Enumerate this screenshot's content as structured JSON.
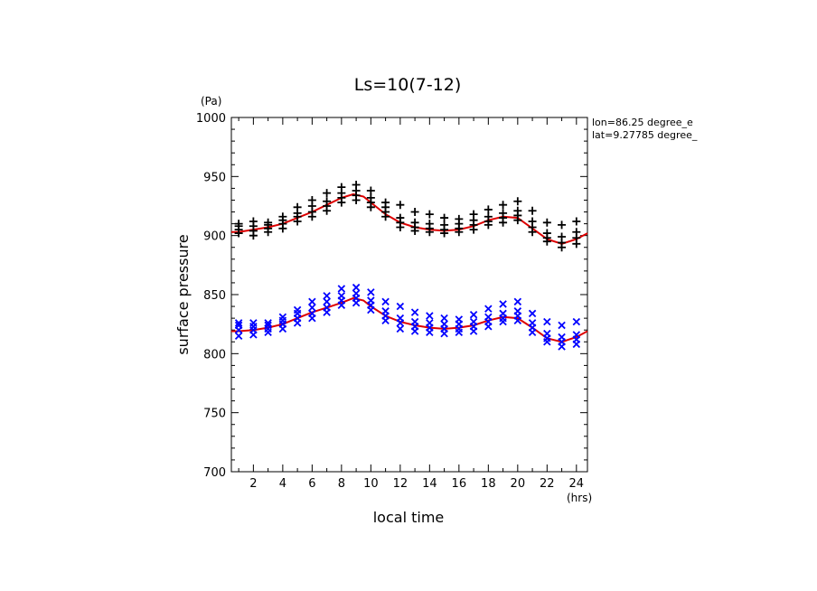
{
  "chart_data": {
    "type": "scatter",
    "title": "Ls=10(7-12)",
    "xlabel": "local time",
    "ylabel": "surface pressure",
    "x_unit": "(hrs)",
    "y_unit": "(Pa)",
    "xlim": [
      0.5,
      24.75
    ],
    "ylim": [
      700,
      1000
    ],
    "xticks": [
      2,
      4,
      6,
      8,
      10,
      12,
      14,
      16,
      18,
      20,
      22,
      24
    ],
    "yticks": [
      700,
      750,
      800,
      850,
      900,
      950,
      1000
    ],
    "grid": false,
    "annotation": [
      "lon=86.25 degree_e",
      "lat=9.27785 degree_"
    ],
    "x": [
      1,
      2,
      3,
      4,
      5,
      6,
      7,
      8,
      9,
      10,
      11,
      12,
      13,
      14,
      15,
      16,
      17,
      18,
      19,
      20,
      21,
      22,
      23,
      24
    ],
    "series": [
      {
        "marker": "+",
        "color": "#000000",
        "values": [
          [
            902,
            905,
            908,
            910
          ],
          [
            900,
            904,
            908,
            912
          ],
          [
            903,
            906,
            909,
            911
          ],
          [
            906,
            910,
            913,
            916
          ],
          [
            912,
            916,
            919,
            924
          ],
          [
            916,
            920,
            925,
            930
          ],
          [
            921,
            925,
            929,
            936
          ],
          [
            928,
            932,
            936,
            941
          ],
          [
            930,
            934,
            938,
            943
          ],
          [
            924,
            928,
            932,
            938
          ],
          [
            916,
            920,
            924,
            928
          ],
          [
            907,
            911,
            915,
            926
          ],
          [
            904,
            907,
            911,
            920
          ],
          [
            903,
            906,
            910,
            918
          ],
          [
            902,
            905,
            909,
            915
          ],
          [
            903,
            906,
            910,
            914
          ],
          [
            905,
            909,
            913,
            918
          ],
          [
            909,
            912,
            916,
            922
          ],
          [
            911,
            915,
            919,
            926
          ],
          [
            913,
            917,
            921,
            929
          ],
          [
            903,
            907,
            912,
            921
          ],
          [
            895,
            898,
            902,
            911
          ],
          [
            890,
            894,
            899,
            909
          ],
          [
            893,
            898,
            903,
            912
          ]
        ]
      },
      {
        "marker": "x",
        "color": "#0000ff",
        "values": [
          [
            815,
            820,
            824,
            826
          ],
          [
            816,
            820,
            823,
            826
          ],
          [
            818,
            821,
            824,
            826
          ],
          [
            821,
            825,
            828,
            831
          ],
          [
            826,
            830,
            834,
            837
          ],
          [
            830,
            834,
            839,
            844
          ],
          [
            835,
            839,
            844,
            849
          ],
          [
            841,
            845,
            849,
            855
          ],
          [
            843,
            847,
            851,
            856
          ],
          [
            837,
            841,
            845,
            852
          ],
          [
            828,
            832,
            836,
            844
          ],
          [
            821,
            826,
            830,
            840
          ],
          [
            819,
            823,
            827,
            835
          ],
          [
            818,
            822,
            826,
            832
          ],
          [
            817,
            821,
            825,
            830
          ],
          [
            818,
            821,
            825,
            829
          ],
          [
            819,
            823,
            827,
            833
          ],
          [
            823,
            827,
            831,
            838
          ],
          [
            827,
            830,
            834,
            842
          ],
          [
            828,
            832,
            836,
            844
          ],
          [
            818,
            822,
            826,
            834
          ],
          [
            810,
            813,
            817,
            827
          ],
          [
            806,
            810,
            814,
            824
          ],
          [
            808,
            812,
            816,
            827
          ]
        ]
      },
      {
        "type": "line",
        "color": "#dd0000",
        "x": [
          0.5,
          1,
          2,
          3,
          4,
          5,
          6,
          7,
          8,
          8.8,
          9.5,
          10,
          11,
          12,
          13,
          14,
          15,
          16,
          17,
          18,
          19,
          20,
          21,
          22,
          23,
          24,
          24.75
        ],
        "values": [
          903,
          903,
          905,
          907,
          910,
          915,
          920,
          926,
          932,
          935,
          933,
          928,
          918,
          911,
          907,
          905,
          904,
          905,
          908,
          913,
          916,
          915,
          906,
          897,
          893,
          897,
          902
        ]
      },
      {
        "type": "line",
        "color": "#dd0000",
        "x": [
          0.5,
          1,
          2,
          3,
          4,
          5,
          6,
          7,
          8,
          8.8,
          9.5,
          10,
          11,
          12,
          13,
          14,
          15,
          16,
          17,
          18,
          19,
          20,
          21,
          22,
          23,
          24,
          24.75
        ],
        "values": [
          819,
          819,
          820,
          822,
          825,
          830,
          835,
          839,
          843,
          847,
          845,
          840,
          832,
          827,
          824,
          822,
          821,
          822,
          824,
          828,
          831,
          830,
          822,
          813,
          810,
          814,
          819
        ]
      }
    ]
  }
}
